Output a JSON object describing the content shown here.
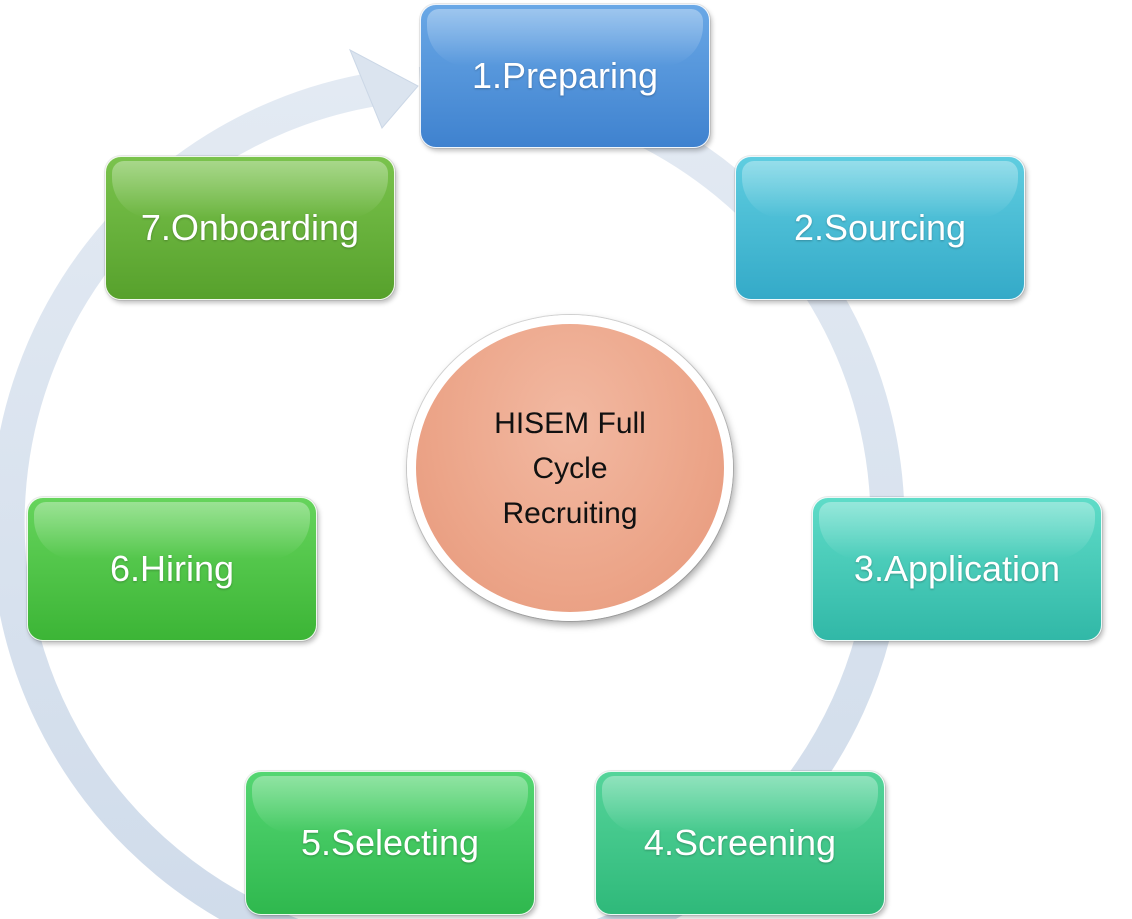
{
  "center": {
    "label": "HISEM Full Cycle Recruiting"
  },
  "steps": [
    {
      "label": "1.Preparing"
    },
    {
      "label": "2.Sourcing"
    },
    {
      "label": "3.Application"
    },
    {
      "label": "4.Screening"
    },
    {
      "label": "5.Selecting"
    },
    {
      "label": "6.Hiring"
    },
    {
      "label": "7.Onboarding"
    }
  ],
  "colors": {
    "cycle_arrow": "#d9e3ef",
    "step_1": "#4f8fd9",
    "step_2": "#43b6d2",
    "step_3": "#3fc7b4",
    "step_4": "#3fc586",
    "step_5": "#3fc25f",
    "step_6": "#4dbf45",
    "step_7": "#65ad3a",
    "center": "#eca589"
  }
}
